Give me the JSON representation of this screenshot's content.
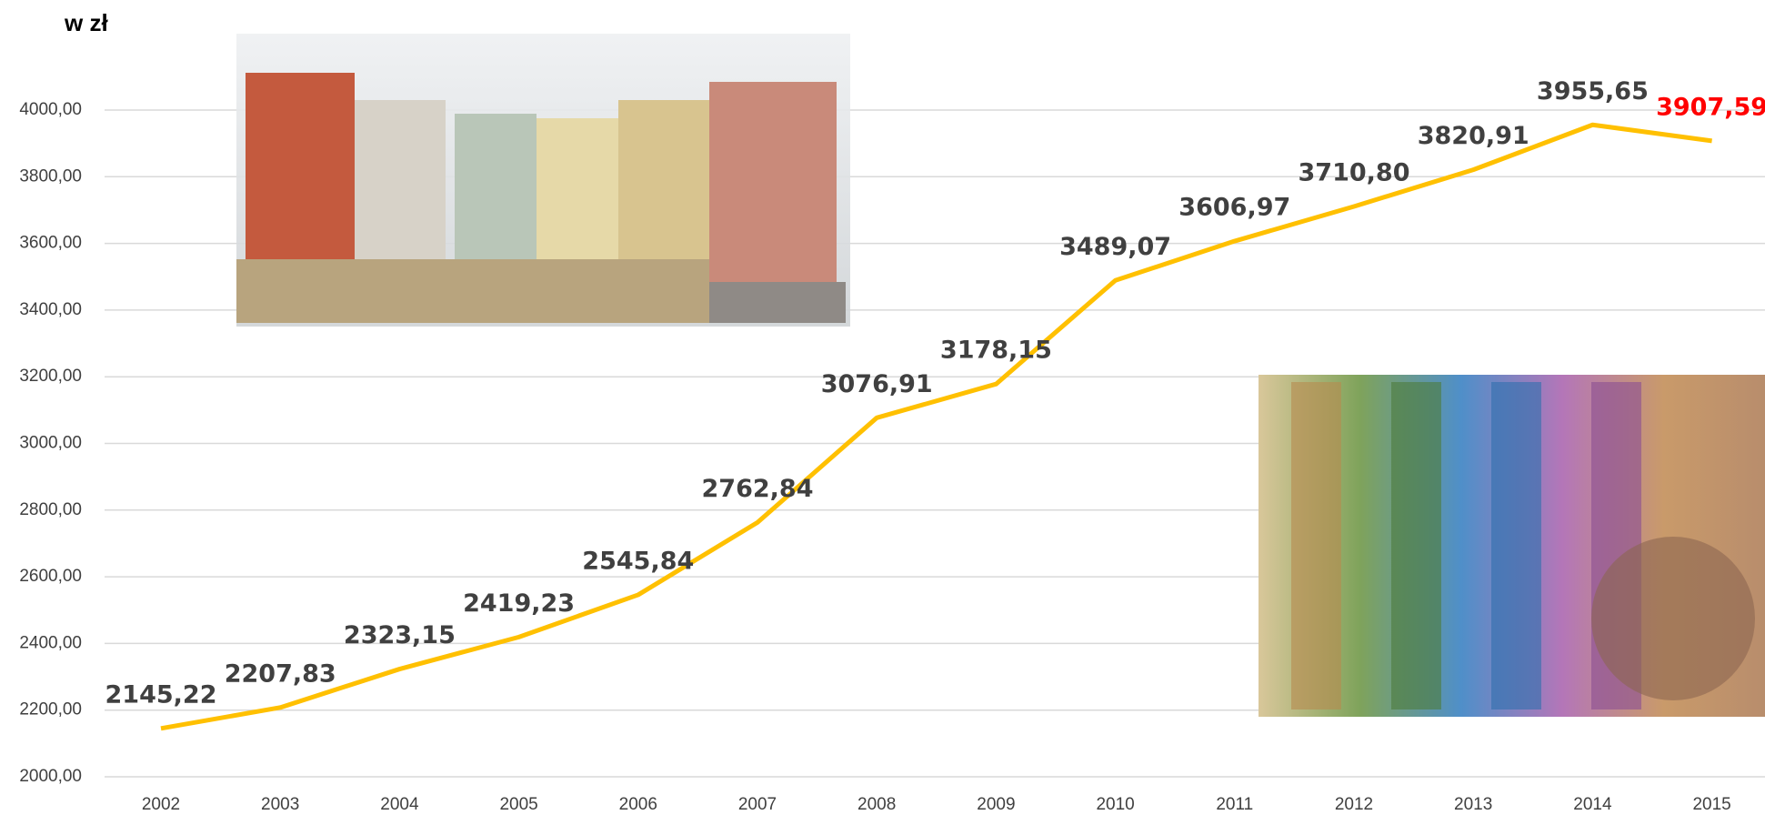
{
  "chart_data": {
    "type": "line",
    "y_label": "w zł",
    "categories": [
      "2002",
      "2003",
      "2004",
      "2005",
      "2006",
      "2007",
      "2008",
      "2009",
      "2010",
      "2011",
      "2012",
      "2013",
      "2014",
      "2015"
    ],
    "series": [
      {
        "color": "#ffc000",
        "values": [
          2145.22,
          2207.83,
          2323.15,
          2419.23,
          2545.84,
          2762.84,
          3076.91,
          3178.15,
          3489.07,
          3606.97,
          3710.8,
          3820.91,
          3955.65,
          3907.59
        ],
        "value_labels": [
          "2145,22",
          "2207,83",
          "2323,15",
          "2419,23",
          "2545,84",
          "2762,84",
          "3076,91",
          "3178,15",
          "3489,07",
          "3606,97",
          "3710,80",
          "3820,91",
          "3955,65",
          "3907,59"
        ],
        "value_label_colors": [
          "#404040",
          "#404040",
          "#404040",
          "#404040",
          "#404040",
          "#404040",
          "#404040",
          "#404040",
          "#404040",
          "#404040",
          "#404040",
          "#404040",
          "#404040",
          "#ff0000"
        ]
      }
    ],
    "ylim": [
      2000,
      4000
    ],
    "yticks": [
      {
        "value": 2000,
        "label": "2000,00"
      },
      {
        "value": 2200,
        "label": "2200,00"
      },
      {
        "value": 2400,
        "label": "2400,00"
      },
      {
        "value": 2600,
        "label": "2600,00"
      },
      {
        "value": 2800,
        "label": "2800,00"
      },
      {
        "value": 3000,
        "label": "3000,00"
      },
      {
        "value": 3200,
        "label": "3200,00"
      },
      {
        "value": 3400,
        "label": "3400,00"
      },
      {
        "value": 3600,
        "label": "3600,00"
      },
      {
        "value": 3800,
        "label": "3800,00"
      },
      {
        "value": 4000,
        "label": "4000,00"
      }
    ],
    "grid": true
  }
}
